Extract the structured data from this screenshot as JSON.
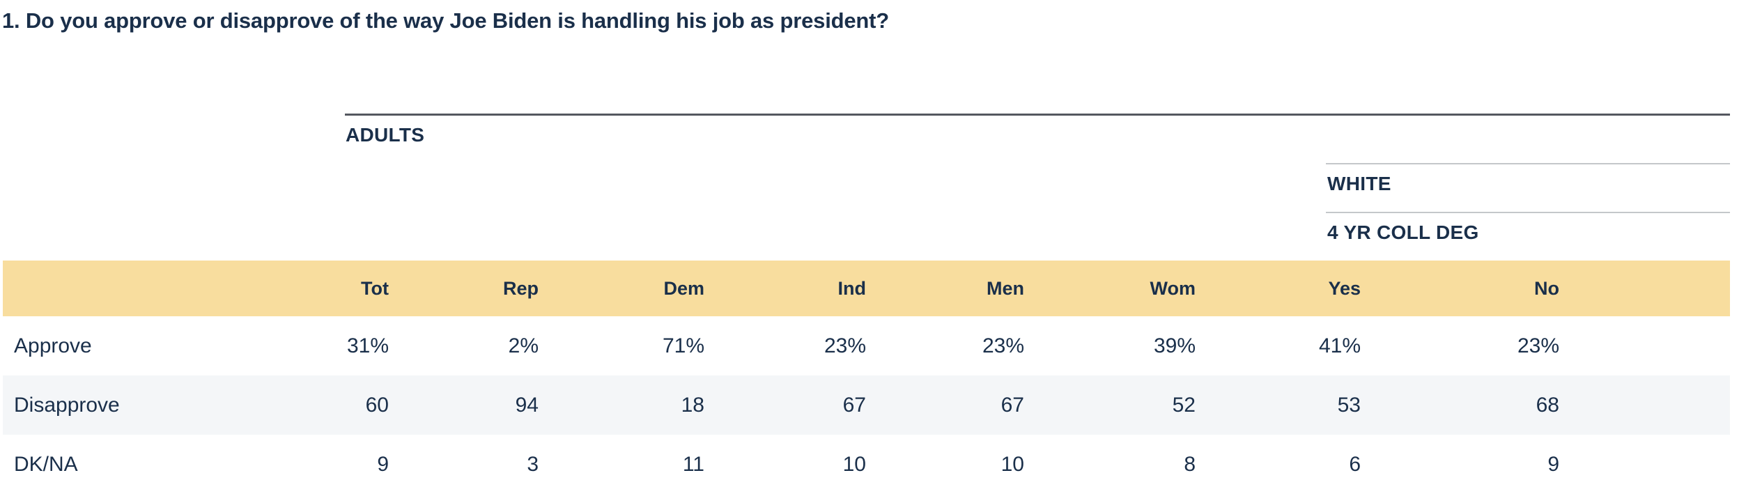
{
  "title": "1. Do you approve or disapprove of the way Joe Biden is handling his job as president?",
  "groups": {
    "adults": "ADULTS",
    "white": "WHITE",
    "white_sub": "4 YR COLL DEG"
  },
  "table": {
    "columns": [
      "Tot",
      "Rep",
      "Dem",
      "Ind",
      "Men",
      "Wom",
      "Yes",
      "No"
    ],
    "rows": [
      {
        "label": "Approve",
        "values": [
          "31%",
          "2%",
          "71%",
          "23%",
          "23%",
          "39%",
          "41%",
          "23%"
        ]
      },
      {
        "label": "Disapprove",
        "values": [
          "60",
          "94",
          "18",
          "67",
          "67",
          "52",
          "53",
          "68"
        ]
      },
      {
        "label": "DK/NA",
        "values": [
          "9",
          "3",
          "11",
          "10",
          "10",
          "8",
          "6",
          "9"
        ]
      }
    ]
  },
  "colors": {
    "navy": "#1a2f4a",
    "band": "#f8dd9e",
    "stripe": "#f4f6f8",
    "dark-rule": "#54575f",
    "light-rule": "#c4c7ca",
    "page-bg": "#ffffff"
  }
}
